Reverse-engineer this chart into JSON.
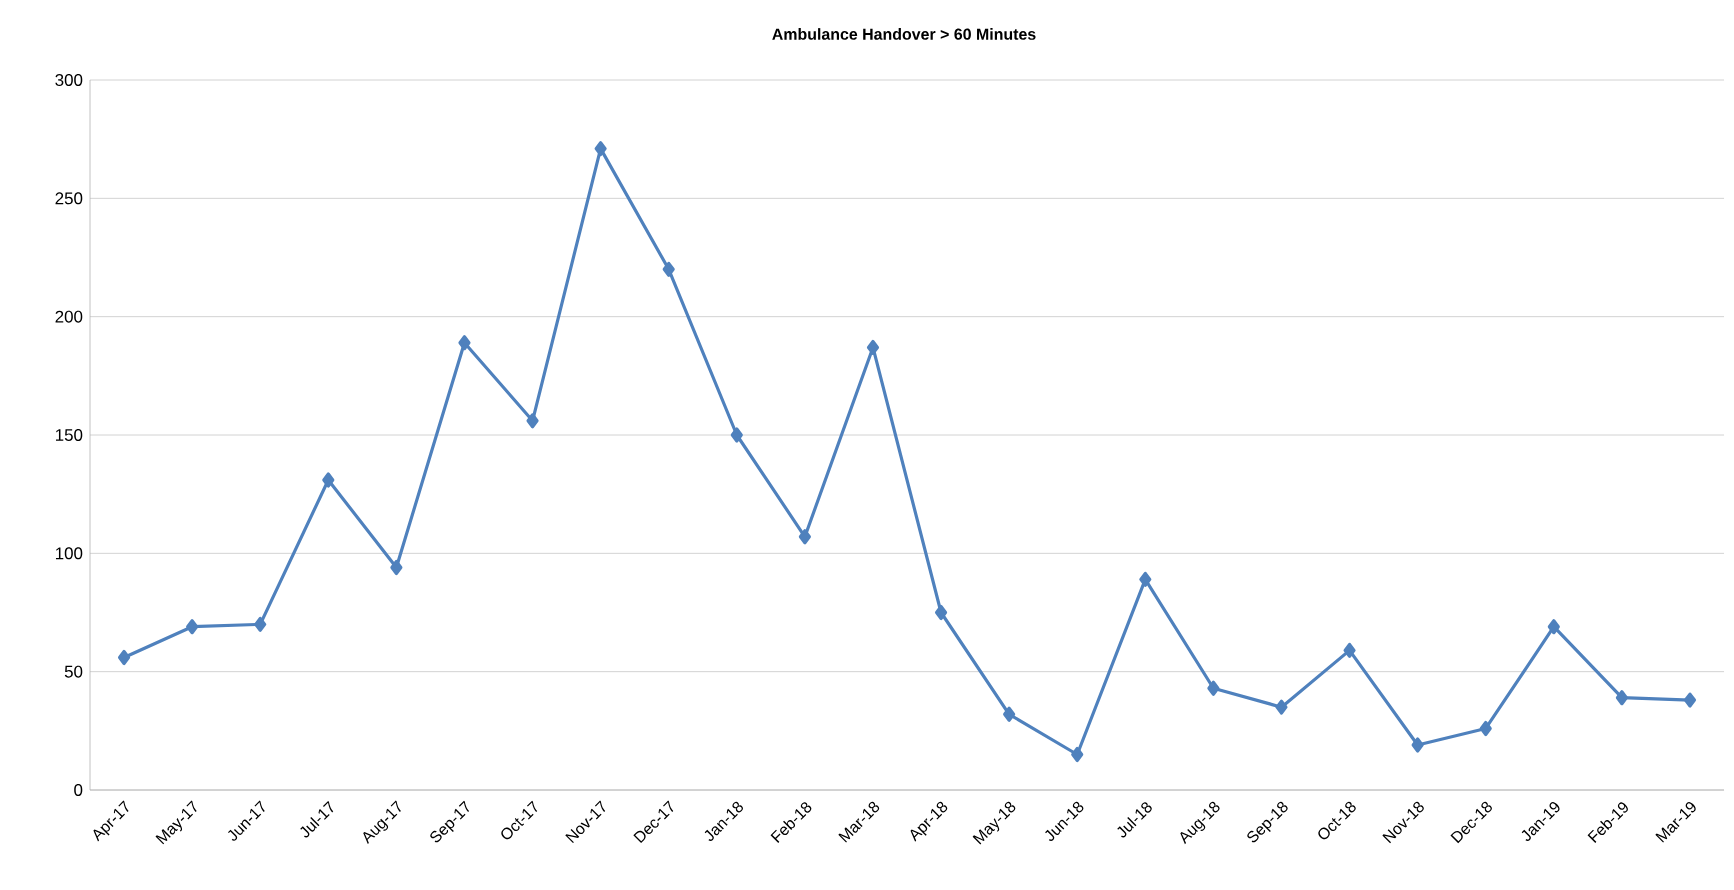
{
  "chart_data": {
    "type": "line",
    "title": "Ambulance Handover > 60 Minutes",
    "categories": [
      "Apr-17",
      "May-17",
      "Jun-17",
      "Jul-17",
      "Aug-17",
      "Sep-17",
      "Oct-17",
      "Nov-17",
      "Dec-17",
      "Jan-18",
      "Feb-18",
      "Mar-18",
      "Apr-18",
      "May-18",
      "Jun-18",
      "Jul-18",
      "Aug-18",
      "Sep-18",
      "Oct-18",
      "Nov-18",
      "Dec-18",
      "Jan-19",
      "Feb-19",
      "Mar-19"
    ],
    "series": [
      {
        "color": "#4f81bd",
        "values": [
          56,
          69,
          70,
          131,
          94,
          189,
          156,
          271,
          220,
          150,
          107,
          187,
          75,
          32,
          15,
          89,
          43,
          35,
          59,
          19,
          26,
          69,
          39,
          38
        ]
      }
    ],
    "ylim": [
      0,
      300
    ],
    "yticks": [
      0,
      50,
      100,
      150,
      200,
      250,
      300
    ],
    "grid": "y",
    "marker": "diamond",
    "line_style": "solid"
  }
}
